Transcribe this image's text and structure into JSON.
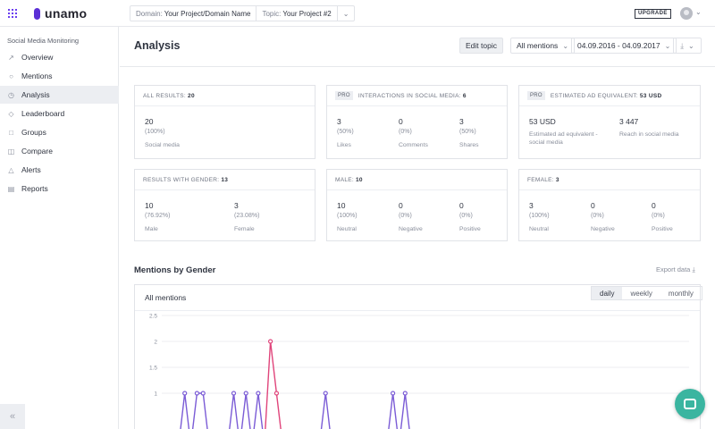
{
  "app": {
    "brand": "unamo"
  },
  "topbar": {
    "domain_key": "Domain:",
    "domain_value": "Your Project/Domain Name",
    "topic_key": "Topic:",
    "topic_value": "Your Project #2",
    "upgrade_label": "UPGRADE"
  },
  "sidebar": {
    "section_title": "Social Media Monitoring",
    "items": [
      {
        "label": "Overview",
        "icon": "trend-icon"
      },
      {
        "label": "Mentions",
        "icon": "chat-icon"
      },
      {
        "label": "Analysis",
        "icon": "clock-icon",
        "active": true
      },
      {
        "label": "Leaderboard",
        "icon": "trophy-icon"
      },
      {
        "label": "Groups",
        "icon": "folder-icon"
      },
      {
        "label": "Compare",
        "icon": "compare-icon"
      },
      {
        "label": "Alerts",
        "icon": "bell-icon"
      },
      {
        "label": "Reports",
        "icon": "report-icon"
      }
    ]
  },
  "header": {
    "title": "Analysis",
    "edit_topic": "Edit topic",
    "mentions_filter": "All mentions",
    "date_range": "04.09.2016 - 04.09.2017"
  },
  "cards": {
    "all_results": {
      "title": "All results:",
      "total": "20",
      "metrics": [
        {
          "value": "20",
          "pct": "(100%)",
          "label": "Social media"
        }
      ]
    },
    "interactions": {
      "pro": "PRO",
      "title": "Interactions in social media:",
      "total": "6",
      "metrics": [
        {
          "value": "3",
          "pct": "(50%)",
          "label": "Likes"
        },
        {
          "value": "0",
          "pct": "(0%)",
          "label": "Comments"
        },
        {
          "value": "3",
          "pct": "(50%)",
          "label": "Shares"
        }
      ]
    },
    "ad_equivalent": {
      "pro": "PRO",
      "title": "Estimated ad equivalent:",
      "total": "53 USD",
      "metrics": [
        {
          "value": "53 USD",
          "label": "Estimated ad equivalent - social media"
        },
        {
          "value": "3 447",
          "label": "Reach in social media"
        }
      ]
    },
    "gender": {
      "title": "Results with gender:",
      "total": "13",
      "metrics": [
        {
          "value": "10",
          "pct": "(76.92%)",
          "label": "Male"
        },
        {
          "value": "3",
          "pct": "(23.08%)",
          "label": "Female"
        }
      ]
    },
    "male": {
      "title": "Male:",
      "total": "10",
      "metrics": [
        {
          "value": "10",
          "pct": "(100%)",
          "label": "Neutral"
        },
        {
          "value": "0",
          "pct": "(0%)",
          "label": "Negative"
        },
        {
          "value": "0",
          "pct": "(0%)",
          "label": "Positive"
        }
      ]
    },
    "female": {
      "title": "Female:",
      "total": "3",
      "metrics": [
        {
          "value": "3",
          "pct": "(100%)",
          "label": "Neutral"
        },
        {
          "value": "0",
          "pct": "(0%)",
          "label": "Negative"
        },
        {
          "value": "0",
          "pct": "(0%)",
          "label": "Positive"
        }
      ]
    }
  },
  "gender_chart": {
    "section_title": "Mentions by Gender",
    "export_label": "Export data",
    "subtitle": "All mentions",
    "tabs": [
      "daily",
      "weekly",
      "monthly"
    ],
    "active_tab": "daily"
  },
  "chart_data": {
    "type": "line",
    "ylim": [
      0,
      2.5
    ],
    "yticks": [
      "2.5",
      "2",
      "1.5",
      "1"
    ],
    "series": [
      {
        "color": "#7b5cd6",
        "values": [
          0,
          0,
          1,
          0,
          1,
          1,
          0,
          0,
          0,
          0,
          1,
          0,
          1,
          0,
          1,
          0,
          0,
          0,
          0,
          0,
          0,
          0,
          0,
          0,
          0,
          1,
          0,
          0,
          0,
          0,
          0,
          0,
          0,
          0,
          0,
          0,
          1,
          0,
          1,
          0
        ]
      },
      {
        "color": "#e0457b",
        "values": [
          0,
          0,
          0,
          0,
          0,
          0,
          0,
          0,
          0,
          0,
          0,
          0,
          0,
          0,
          0,
          0,
          2,
          1,
          0,
          0,
          0,
          0,
          0,
          0,
          0,
          0,
          0,
          0,
          0,
          0,
          0,
          0,
          0,
          0,
          0,
          0,
          0,
          0,
          0,
          0
        ]
      }
    ]
  }
}
